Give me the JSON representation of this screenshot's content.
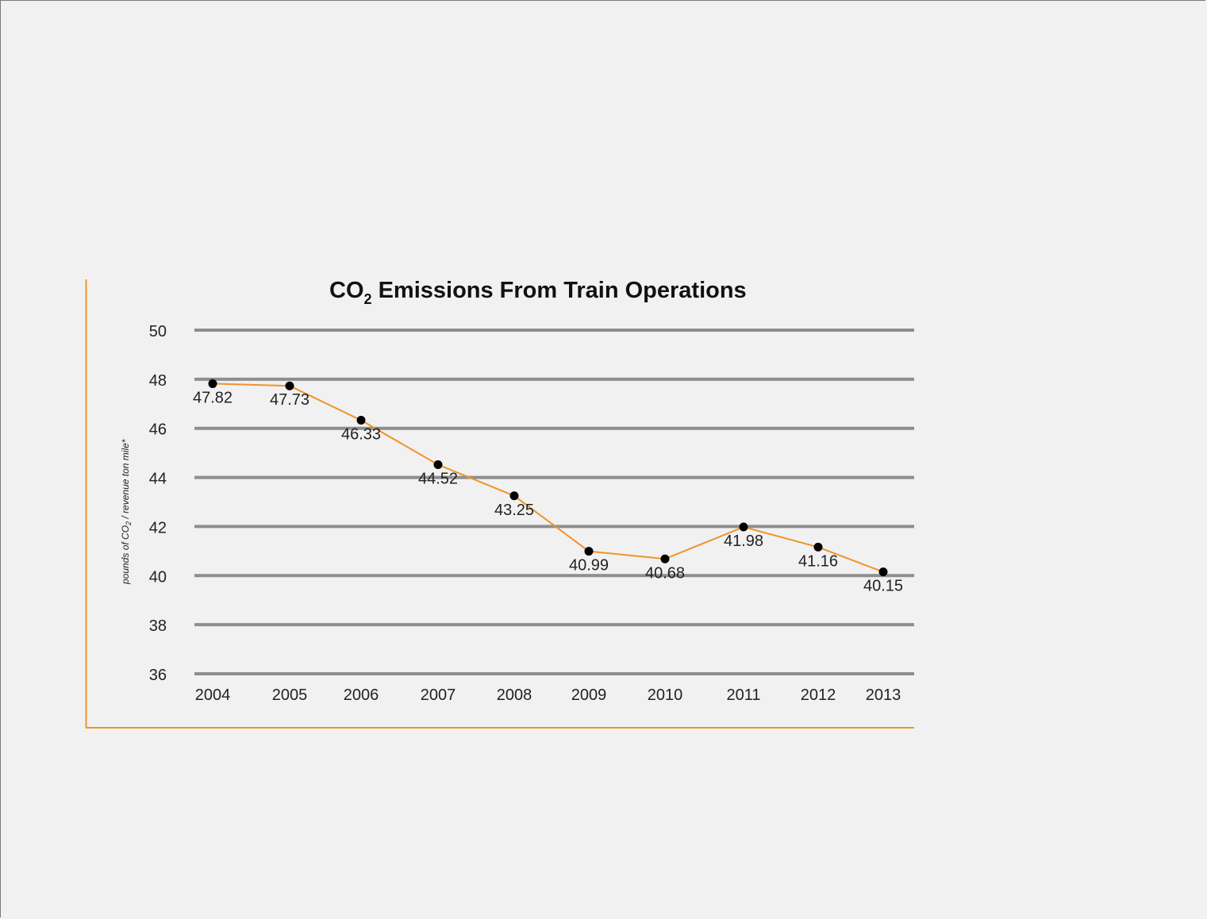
{
  "chart_data": {
    "type": "line",
    "title": "CO",
    "title_subscript": "2",
    "title_rest": " Emissions From Train Operations",
    "ylabel": "pounds of CO",
    "ylabel_subscript": "2",
    "ylabel_rest": " / revenue ton mile*",
    "xlabel": "",
    "categories": [
      "2004",
      "2005",
      "2006",
      "2007",
      "2008",
      "2009",
      "2010",
      "2011",
      "2012",
      "2013"
    ],
    "values": [
      47.82,
      47.73,
      46.33,
      44.52,
      43.25,
      40.99,
      40.68,
      41.98,
      41.16,
      40.15
    ],
    "data_labels": [
      "47.82",
      "47.73",
      "46.33",
      "44.52",
      "43.25",
      "40.99",
      "40.68",
      "41.98",
      "41.16",
      "40.15"
    ],
    "yticks": [
      "50",
      "48",
      "46",
      "44",
      "42",
      "40",
      "38",
      "36"
    ],
    "ylim": [
      36,
      50
    ],
    "grid": true,
    "line_color": "#f0932a",
    "grid_color": "#8e8e8e",
    "frame_color": "#f0932a",
    "marker_color": "#000000"
  }
}
